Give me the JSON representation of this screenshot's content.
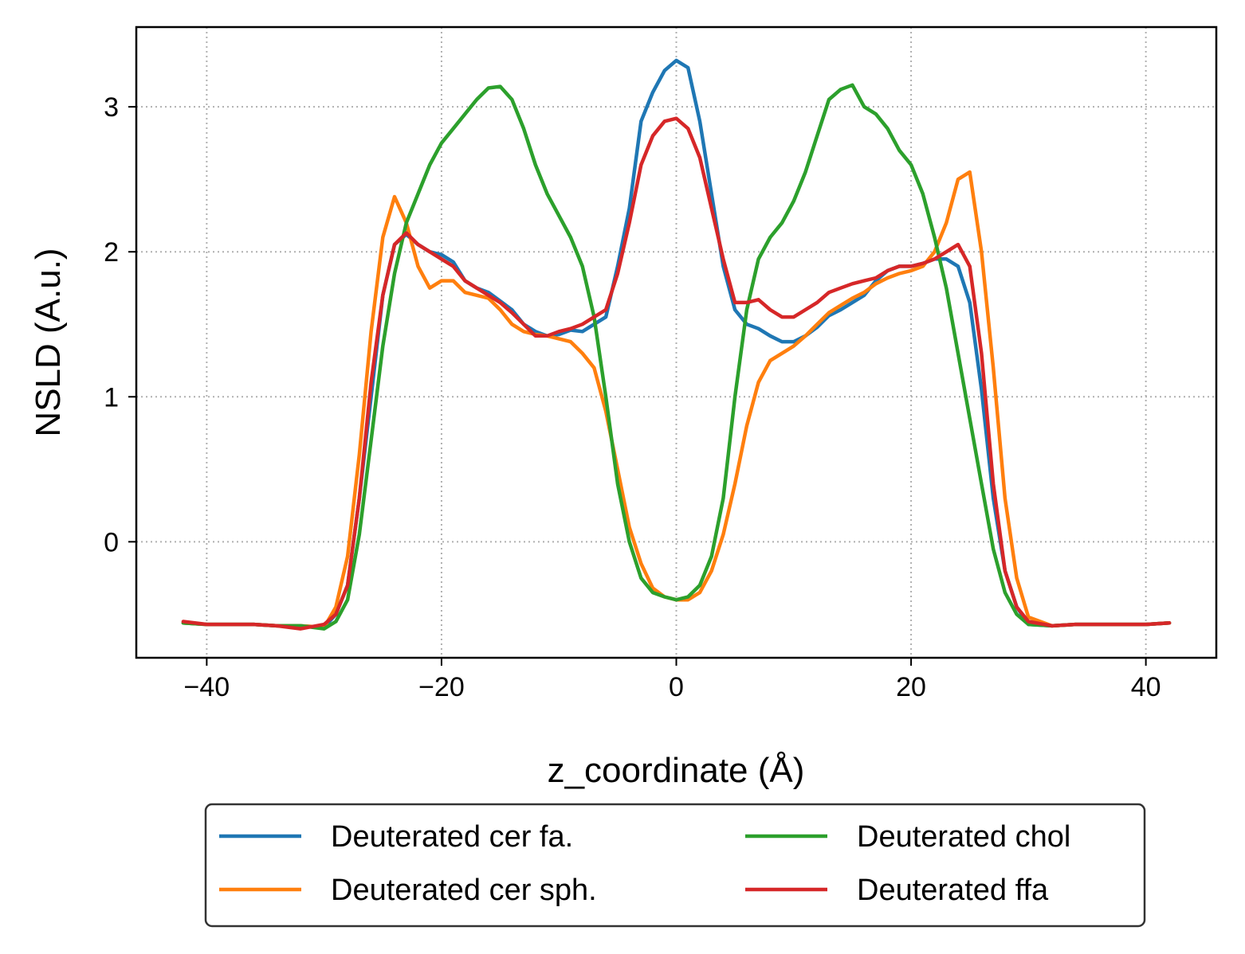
{
  "chart_data": {
    "type": "line",
    "title": "",
    "xlabel": "z_coordinate (Å)",
    "ylabel": "NSLD (A.u.)",
    "xlim": [
      -46,
      46
    ],
    "ylim": [
      -0.8,
      3.55
    ],
    "xticks": [
      -40,
      -20,
      0,
      20,
      40
    ],
    "xtick_labels": [
      "−40",
      "−20",
      "0",
      "20",
      "40"
    ],
    "yticks": [
      0,
      1,
      2,
      3
    ],
    "ytick_labels": [
      "0",
      "1",
      "2",
      "3"
    ],
    "grid": true,
    "legend_position": "below plot, two columns",
    "series": [
      {
        "name": "Deuterated cer fa.",
        "color": "#1f77b4",
        "x": [
          -42,
          -40,
          -38,
          -36,
          -34,
          -32,
          -30,
          -29,
          -28,
          -27,
          -26,
          -25,
          -24,
          -23,
          -22,
          -21,
          -20,
          -19,
          -18,
          -17,
          -16,
          -15,
          -14,
          -13,
          -12,
          -11,
          -10,
          -9,
          -8,
          -7,
          -6,
          -5,
          -4,
          -3,
          -2,
          -1,
          0,
          1,
          2,
          3,
          4,
          5,
          6,
          7,
          8,
          9,
          10,
          11,
          12,
          13,
          14,
          15,
          16,
          17,
          18,
          19,
          20,
          21,
          22,
          23,
          24,
          25,
          26,
          27,
          28,
          29,
          30,
          32,
          34,
          36,
          38,
          40,
          42
        ],
        "y": [
          -0.56,
          -0.57,
          -0.57,
          -0.57,
          -0.58,
          -0.58,
          -0.59,
          -0.5,
          -0.3,
          0.3,
          1.0,
          1.7,
          2.05,
          2.12,
          2.05,
          2.0,
          1.98,
          1.93,
          1.8,
          1.75,
          1.72,
          1.66,
          1.6,
          1.5,
          1.45,
          1.42,
          1.43,
          1.46,
          1.45,
          1.5,
          1.55,
          1.9,
          2.3,
          2.9,
          3.1,
          3.25,
          3.32,
          3.27,
          2.9,
          2.4,
          1.9,
          1.6,
          1.5,
          1.47,
          1.42,
          1.38,
          1.38,
          1.42,
          1.48,
          1.56,
          1.6,
          1.65,
          1.7,
          1.8,
          1.87,
          1.9,
          1.9,
          1.92,
          1.95,
          1.95,
          1.9,
          1.65,
          1.05,
          0.3,
          -0.2,
          -0.45,
          -0.57,
          -0.58,
          -0.57,
          -0.57,
          -0.57,
          -0.57,
          -0.56
        ]
      },
      {
        "name": "Deuterated cer sph.",
        "color": "#ff7f0e",
        "x": [
          -42,
          -40,
          -38,
          -36,
          -34,
          -32,
          -30,
          -29,
          -28,
          -27,
          -26,
          -25,
          -24,
          -23,
          -22,
          -21,
          -20,
          -19,
          -18,
          -17,
          -16,
          -15,
          -14,
          -13,
          -12,
          -11,
          -10,
          -9,
          -8,
          -7,
          -6,
          -5,
          -4,
          -3,
          -2,
          -1,
          0,
          1,
          2,
          3,
          4,
          5,
          6,
          7,
          8,
          9,
          10,
          11,
          12,
          13,
          14,
          15,
          16,
          17,
          18,
          19,
          20,
          21,
          22,
          23,
          24,
          25,
          26,
          27,
          28,
          29,
          30,
          32,
          34,
          36,
          38,
          40,
          42
        ],
        "y": [
          -0.56,
          -0.57,
          -0.57,
          -0.57,
          -0.58,
          -0.58,
          -0.59,
          -0.45,
          -0.1,
          0.6,
          1.45,
          2.1,
          2.38,
          2.2,
          1.9,
          1.75,
          1.8,
          1.8,
          1.72,
          1.7,
          1.68,
          1.6,
          1.5,
          1.45,
          1.43,
          1.42,
          1.4,
          1.38,
          1.3,
          1.2,
          0.9,
          0.5,
          0.1,
          -0.15,
          -0.32,
          -0.38,
          -0.4,
          -0.4,
          -0.35,
          -0.2,
          0.05,
          0.4,
          0.8,
          1.1,
          1.25,
          1.3,
          1.35,
          1.42,
          1.5,
          1.58,
          1.63,
          1.68,
          1.72,
          1.78,
          1.82,
          1.85,
          1.87,
          1.9,
          2.0,
          2.2,
          2.5,
          2.55,
          2.0,
          1.2,
          0.3,
          -0.25,
          -0.52,
          -0.58,
          -0.57,
          -0.57,
          -0.57,
          -0.57,
          -0.56
        ]
      },
      {
        "name": "Deuterated chol",
        "color": "#2ca02c",
        "x": [
          -42,
          -40,
          -38,
          -36,
          -34,
          -32,
          -30,
          -29,
          -28,
          -27,
          -26,
          -25,
          -24,
          -23,
          -22,
          -21,
          -20,
          -19,
          -18,
          -17,
          -16,
          -15,
          -14,
          -13,
          -12,
          -11,
          -10,
          -9,
          -8,
          -7,
          -6,
          -5,
          -4,
          -3,
          -2,
          -1,
          0,
          1,
          2,
          3,
          4,
          5,
          6,
          7,
          8,
          9,
          10,
          11,
          12,
          13,
          14,
          15,
          16,
          17,
          18,
          19,
          20,
          21,
          22,
          23,
          24,
          25,
          26,
          27,
          28,
          29,
          30,
          32,
          34,
          36,
          38,
          40,
          42
        ],
        "y": [
          -0.56,
          -0.57,
          -0.57,
          -0.57,
          -0.58,
          -0.58,
          -0.6,
          -0.55,
          -0.4,
          0.05,
          0.7,
          1.35,
          1.85,
          2.2,
          2.4,
          2.6,
          2.75,
          2.85,
          2.95,
          3.05,
          3.13,
          3.14,
          3.05,
          2.85,
          2.6,
          2.4,
          2.25,
          2.1,
          1.9,
          1.55,
          1.0,
          0.4,
          0.0,
          -0.25,
          -0.35,
          -0.38,
          -0.4,
          -0.38,
          -0.3,
          -0.1,
          0.3,
          1.0,
          1.6,
          1.95,
          2.1,
          2.2,
          2.35,
          2.55,
          2.8,
          3.05,
          3.12,
          3.15,
          3.0,
          2.95,
          2.85,
          2.7,
          2.6,
          2.4,
          2.1,
          1.75,
          1.3,
          0.85,
          0.4,
          -0.05,
          -0.35,
          -0.5,
          -0.57,
          -0.58,
          -0.57,
          -0.57,
          -0.57,
          -0.57,
          -0.56
        ]
      },
      {
        "name": "Deuterated ffa",
        "color": "#d62728",
        "x": [
          -42,
          -40,
          -38,
          -36,
          -34,
          -32,
          -30,
          -29,
          -28,
          -27,
          -26,
          -25,
          -24,
          -23,
          -22,
          -21,
          -20,
          -19,
          -18,
          -17,
          -16,
          -15,
          -14,
          -13,
          -12,
          -11,
          -10,
          -9,
          -8,
          -7,
          -6,
          -5,
          -4,
          -3,
          -2,
          -1,
          0,
          1,
          2,
          3,
          4,
          5,
          6,
          7,
          8,
          9,
          10,
          11,
          12,
          13,
          14,
          15,
          16,
          17,
          18,
          19,
          20,
          21,
          22,
          23,
          24,
          25,
          26,
          27,
          28,
          29,
          30,
          32,
          34,
          36,
          38,
          40,
          42
        ],
        "y": [
          -0.55,
          -0.57,
          -0.57,
          -0.57,
          -0.58,
          -0.6,
          -0.57,
          -0.5,
          -0.3,
          0.3,
          1.1,
          1.7,
          2.05,
          2.13,
          2.05,
          2.0,
          1.95,
          1.9,
          1.8,
          1.75,
          1.7,
          1.65,
          1.58,
          1.5,
          1.42,
          1.42,
          1.45,
          1.47,
          1.5,
          1.55,
          1.6,
          1.85,
          2.2,
          2.6,
          2.8,
          2.9,
          2.92,
          2.85,
          2.65,
          2.3,
          1.95,
          1.65,
          1.65,
          1.67,
          1.6,
          1.55,
          1.55,
          1.6,
          1.65,
          1.72,
          1.75,
          1.78,
          1.8,
          1.82,
          1.87,
          1.9,
          1.9,
          1.92,
          1.95,
          2.0,
          2.05,
          1.9,
          1.3,
          0.4,
          -0.2,
          -0.45,
          -0.55,
          -0.58,
          -0.57,
          -0.57,
          -0.57,
          -0.57,
          -0.56
        ]
      }
    ]
  }
}
